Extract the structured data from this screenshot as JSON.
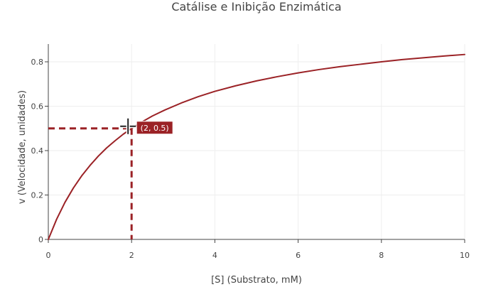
{
  "chart_data": {
    "type": "line",
    "title": "Catálise e Inibição Enzimática",
    "xlabel": "[S] (Substrato, mM)",
    "ylabel": "v (Velocidade, unidades)",
    "xlim": [
      0,
      10
    ],
    "ylim": [
      0,
      0.88
    ],
    "x_ticks": [
      0,
      2,
      4,
      6,
      8,
      10
    ],
    "y_ticks": [
      0,
      0.2,
      0.4,
      0.6,
      0.8
    ],
    "grid": true,
    "series": [
      {
        "color": "#9b2226",
        "x": [
          0,
          0.2,
          0.4,
          0.6,
          0.8,
          1.0,
          1.2,
          1.4,
          1.6,
          1.8,
          2.0,
          2.2,
          2.5,
          2.8,
          3.2,
          3.6,
          4.0,
          4.5,
          5.0,
          5.5,
          6.0,
          6.5,
          7.0,
          7.5,
          8.0,
          8.5,
          9.0,
          9.5,
          10.0
        ],
        "y": [
          0,
          0.091,
          0.167,
          0.231,
          0.286,
          0.333,
          0.375,
          0.412,
          0.444,
          0.474,
          0.5,
          0.524,
          0.556,
          0.583,
          0.615,
          0.643,
          0.667,
          0.692,
          0.714,
          0.733,
          0.75,
          0.765,
          0.778,
          0.789,
          0.8,
          0.81,
          0.818,
          0.826,
          0.833
        ]
      }
    ],
    "annotation": {
      "point": [
        2,
        0.5
      ],
      "label": "(2, 0.5)",
      "color": "#9b2226",
      "line_style": "dashed"
    }
  }
}
